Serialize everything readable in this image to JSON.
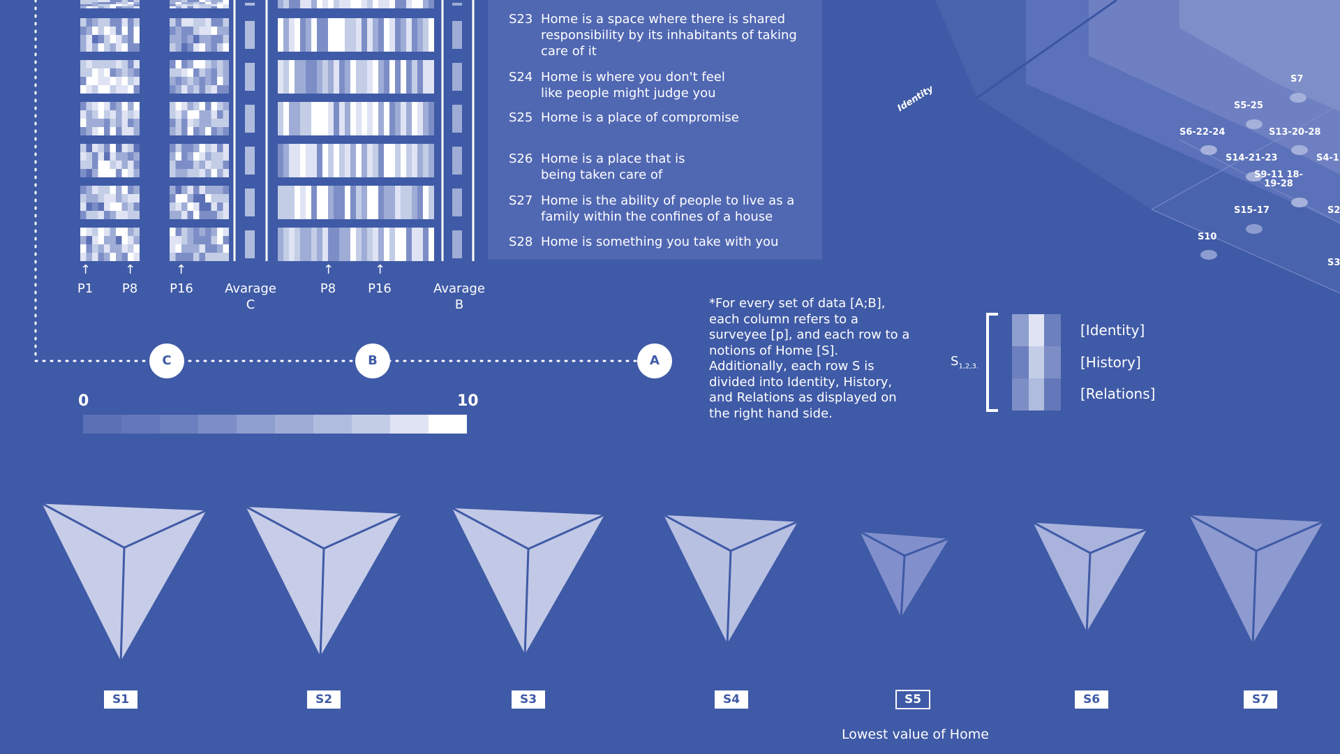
{
  "statements": [
    {
      "id": "S23",
      "text": "Home is a space where there is shared responsibility by its inhabitants of taking care of it"
    },
    {
      "id": "S24",
      "text": "Home is where you don't feel like people might judge you"
    },
    {
      "id": "S25",
      "text": "Home is a place of compromise"
    },
    {
      "id": "S26",
      "text": "Home is a place that is being taken care of"
    },
    {
      "id": "S27",
      "text": "Home is the ability of people to live as a family within the confines of a house"
    },
    {
      "id": "S28",
      "text": "Home is something you take with you"
    }
  ],
  "heatmap_labels": {
    "p1": "P1",
    "p8_c": "P8",
    "p16_c": "P16",
    "avg_c": "Avarage C",
    "p8_b": "P8",
    "p16_b": "P16",
    "avg_b": "Avarage B",
    "arrow": "↑"
  },
  "nodes": {
    "c": "C",
    "b": "B",
    "a": "A"
  },
  "scale": {
    "min": "0",
    "max": "10",
    "steps": 10,
    "colors": [
      "#5c70b6",
      "#6477ba",
      "#6c80bf",
      "#7d8ec7",
      "#8e9ecf",
      "#9eacd6",
      "#afbcde",
      "#c3cde6",
      "#dfe3f3",
      "#ffffff"
    ]
  },
  "note": "*For every set of data [A;B], each column refers to a surveyee [p], and each row to a notions of Home [S]. Additionally, each row S is divided into Identity, History, and Relations as displayed on the right hand side.",
  "legend": {
    "s_label": "S",
    "s_sub": "1,2,3.",
    "identity": "[Identity]",
    "history": "[History]",
    "relations": "[Relations]"
  },
  "pyramids": [
    {
      "label": "S1",
      "scale": 1.0
    },
    {
      "label": "S2",
      "scale": 0.95
    },
    {
      "label": "S3",
      "scale": 0.93
    },
    {
      "label": "S4",
      "scale": 0.82
    },
    {
      "label": "S5",
      "scale": 0.55,
      "highlight": true
    },
    {
      "label": "S6",
      "scale": 0.7
    },
    {
      "label": "S7",
      "scale": 0.82
    }
  ],
  "lowest_caption": "Lowest value of Home",
  "iso": {
    "axis_label": "Identity",
    "points": [
      "S7",
      "S5-25",
      "S6-22-24",
      "S13-20-28",
      "S14-21-23",
      "S4-1",
      "S9-11 18-19-28",
      "S15-17",
      "S2",
      "S10",
      "S3"
    ]
  },
  "colors": {
    "background": "#3f5aa6",
    "panel": "#5067b2",
    "accent": "#ffffff"
  }
}
